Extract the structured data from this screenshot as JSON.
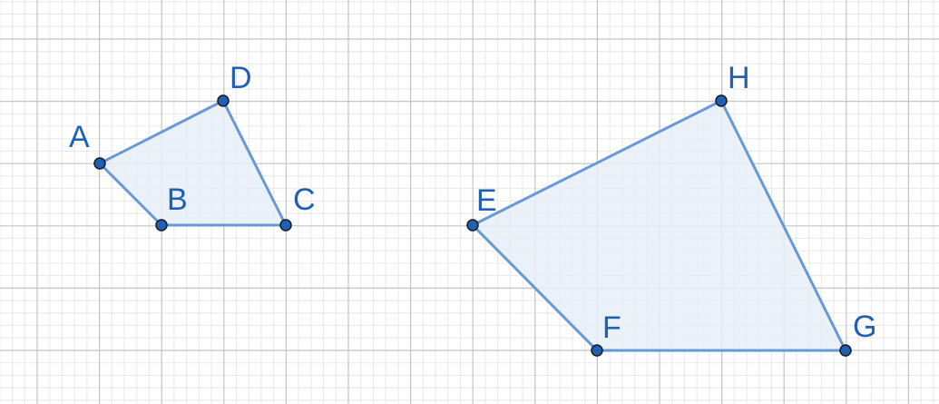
{
  "colors": {
    "background": "#ffffff",
    "grid_minor": "#e8e8e8",
    "grid_major": "#c4c4c4",
    "fill": "#e7eef8",
    "stroke": "#6699d6",
    "point_fill": "#1f5fb5",
    "point_stroke": "#1a1a1a",
    "label": "#1f5fb5"
  },
  "quadrilaterals": [
    {
      "vertices": [
        {
          "label": "A"
        },
        {
          "label": "B"
        },
        {
          "label": "C"
        },
        {
          "label": "D"
        }
      ]
    },
    {
      "vertices": [
        {
          "label": "E"
        },
        {
          "label": "F"
        },
        {
          "label": "G"
        },
        {
          "label": "H"
        }
      ]
    }
  ]
}
